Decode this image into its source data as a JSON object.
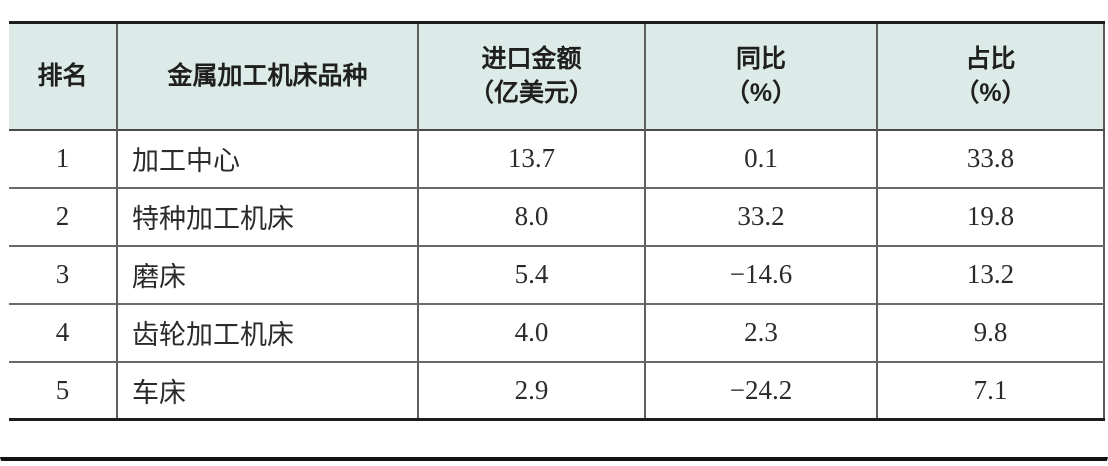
{
  "table": {
    "headers": [
      {
        "lines": [
          "排名"
        ]
      },
      {
        "lines": [
          "金属加工机床品种"
        ]
      },
      {
        "lines": [
          "进口金额",
          "（亿美元）"
        ]
      },
      {
        "lines": [
          "同比",
          "（%）"
        ]
      },
      {
        "lines": [
          "占比",
          "（%）"
        ]
      }
    ],
    "rows": [
      {
        "rank": "1",
        "category": "加工中心",
        "import_amount": "13.7",
        "yoy": "0.1",
        "share": "33.8"
      },
      {
        "rank": "2",
        "category": "特种加工机床",
        "import_amount": "8.0",
        "yoy": "33.2",
        "share": "19.8"
      },
      {
        "rank": "3",
        "category": "磨床",
        "import_amount": "5.4",
        "yoy": "−14.6",
        "share": "13.2"
      },
      {
        "rank": "4",
        "category": "齿轮加工机床",
        "import_amount": "4.0",
        "yoy": "2.3",
        "share": "9.8"
      },
      {
        "rank": "5",
        "category": "车床",
        "import_amount": "2.9",
        "yoy": "−24.2",
        "share": "7.1"
      }
    ]
  },
  "colors": {
    "header_background": "#dcebe8",
    "thick_rule": "#1c1c1c",
    "inner_grid_line": "#5f5f5f",
    "text": "#2b2b2b",
    "page_bottom_rule": "#111111"
  }
}
